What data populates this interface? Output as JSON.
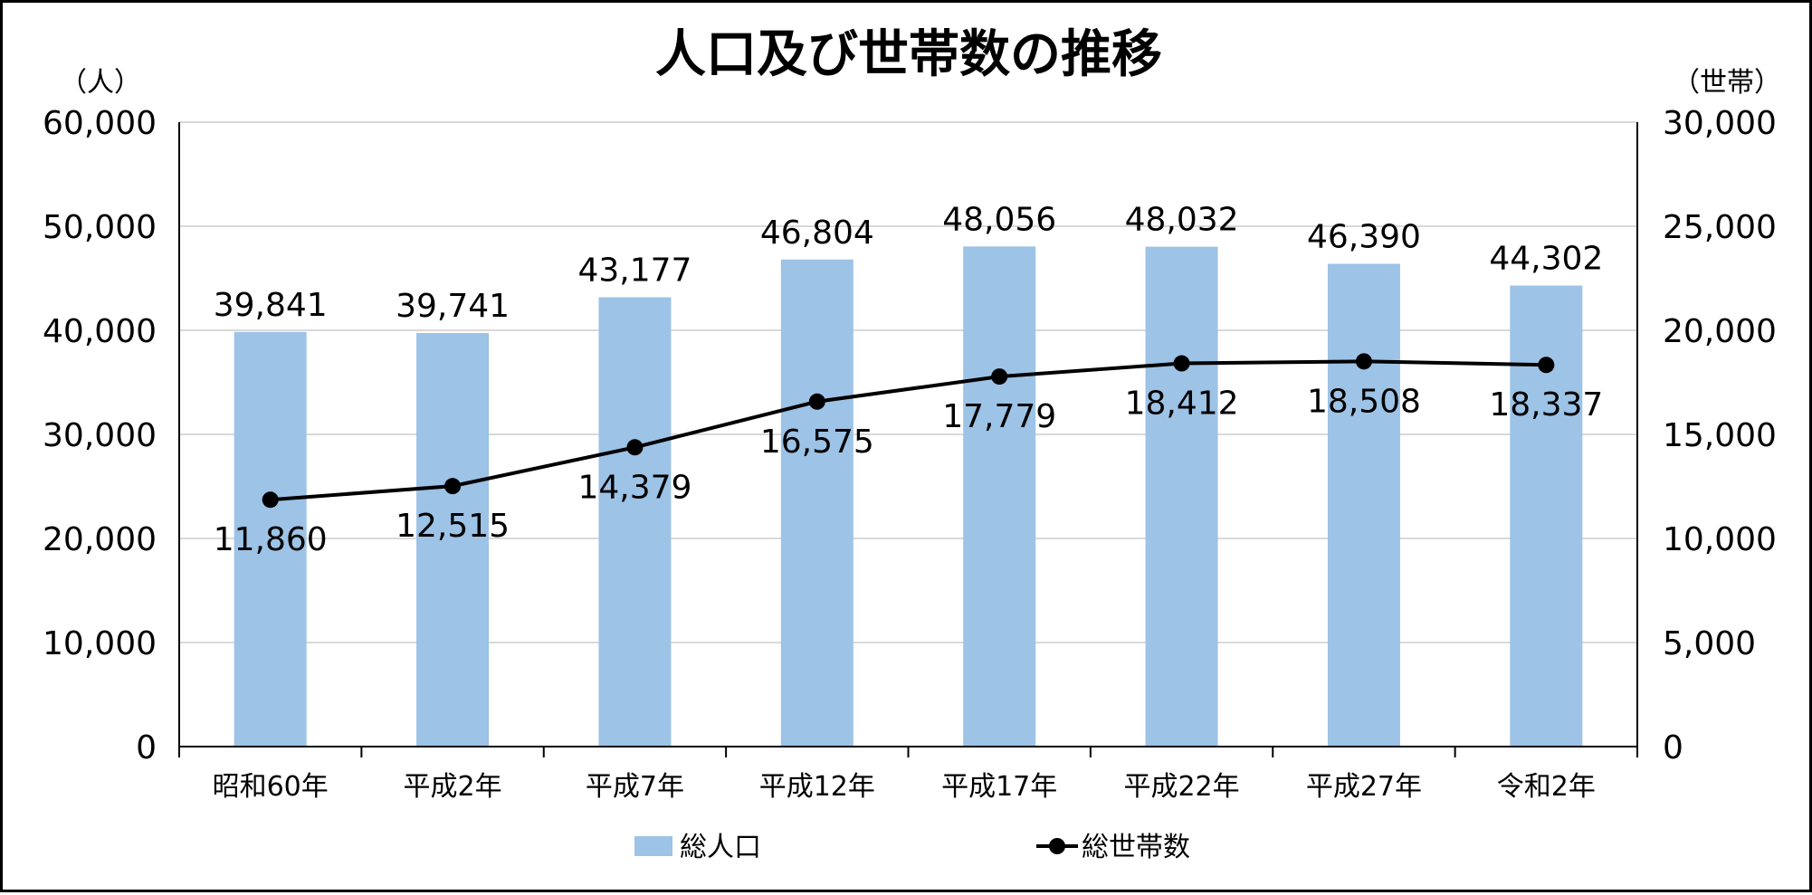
{
  "chart_data": {
    "type": "bar",
    "title": "人口及び世帯数の推移",
    "y_left_unit": "（人）",
    "y_right_unit": "（世帯）",
    "categories": [
      "昭和60年",
      "平成2年",
      "平成7年",
      "平成12年",
      "平成17年",
      "平成22年",
      "平成27年",
      "令和2年"
    ],
    "series": [
      {
        "name": "総人口",
        "type": "bar",
        "axis": "left",
        "color": "#9DC3E6",
        "values": [
          39841,
          39741,
          43177,
          46804,
          48056,
          48032,
          46390,
          44302
        ]
      },
      {
        "name": "総世帯数",
        "type": "line",
        "axis": "right",
        "color": "#000000",
        "values": [
          11860,
          12515,
          14379,
          16575,
          17779,
          18412,
          18508,
          18337
        ]
      }
    ],
    "ylim_left": [
      0,
      60000
    ],
    "ylim_right": [
      0,
      30000
    ],
    "y_left_ticks": [
      "0",
      "10,000",
      "20,000",
      "30,000",
      "40,000",
      "50,000",
      "60,000"
    ],
    "y_right_ticks": [
      "0",
      "5,000",
      "10,000",
      "15,000",
      "20,000",
      "25,000",
      "30,000"
    ],
    "bar_labels": [
      "39,841",
      "39,741",
      "43,177",
      "46,804",
      "48,056",
      "48,032",
      "46,390",
      "44,302"
    ],
    "line_labels": [
      "11,860",
      "12,515",
      "14,379",
      "16,575",
      "17,779",
      "18,412",
      "18,508",
      "18,337"
    ],
    "grid": true,
    "legend_position": "bottom"
  }
}
